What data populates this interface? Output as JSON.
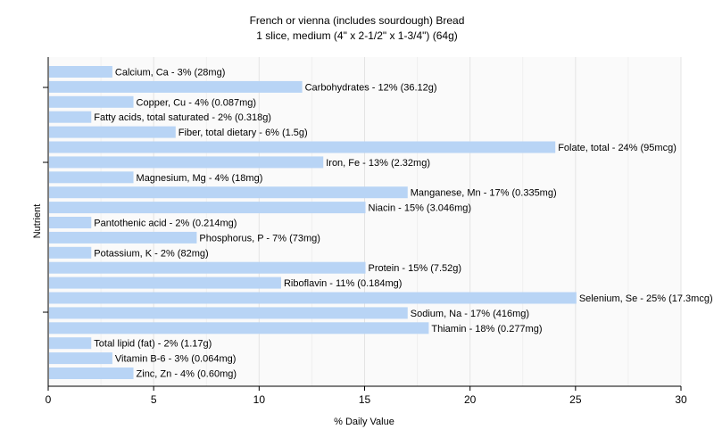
{
  "chart_data": {
    "type": "bar",
    "orientation": "horizontal",
    "title": "French or vienna (includes sourdough) Bread",
    "subtitle": "1 slice, medium (4\" x 2-1/2\" x 1-3/4\") (64g)",
    "xlabel": "% Daily Value",
    "ylabel": "Nutrient",
    "xlim": [
      0,
      30
    ],
    "xticks": [
      0,
      5,
      10,
      15,
      20,
      25,
      30
    ],
    "grid": true,
    "bar_color": "#b8d4f5",
    "categories": [
      "Calcium, Ca - 3% (28mg)",
      "Carbohydrates - 12% (36.12g)",
      "Copper, Cu - 4% (0.087mg)",
      "Fatty acids, total saturated - 2% (0.318g)",
      "Fiber, total dietary - 6% (1.5g)",
      "Folate, total - 24% (95mcg)",
      "Iron, Fe - 13% (2.32mg)",
      "Magnesium, Mg - 4% (18mg)",
      "Manganese, Mn - 17% (0.335mg)",
      "Niacin - 15% (3.046mg)",
      "Pantothenic acid - 2% (0.214mg)",
      "Phosphorus, P - 7% (73mg)",
      "Potassium, K - 2% (82mg)",
      "Protein - 15% (7.52g)",
      "Riboflavin - 11% (0.184mg)",
      "Selenium, Se - 25% (17.3mcg)",
      "Sodium, Na - 17% (416mg)",
      "Thiamin - 18% (0.277mg)",
      "Total lipid (fat) - 2% (1.17g)",
      "Vitamin B-6 - 3% (0.064mg)",
      "Zinc, Zn - 4% (0.60mg)"
    ],
    "values": [
      3,
      12,
      4,
      2,
      6,
      24,
      13,
      4,
      17,
      15,
      2,
      7,
      2,
      15,
      11,
      25,
      17,
      18,
      2,
      3,
      4
    ]
  }
}
